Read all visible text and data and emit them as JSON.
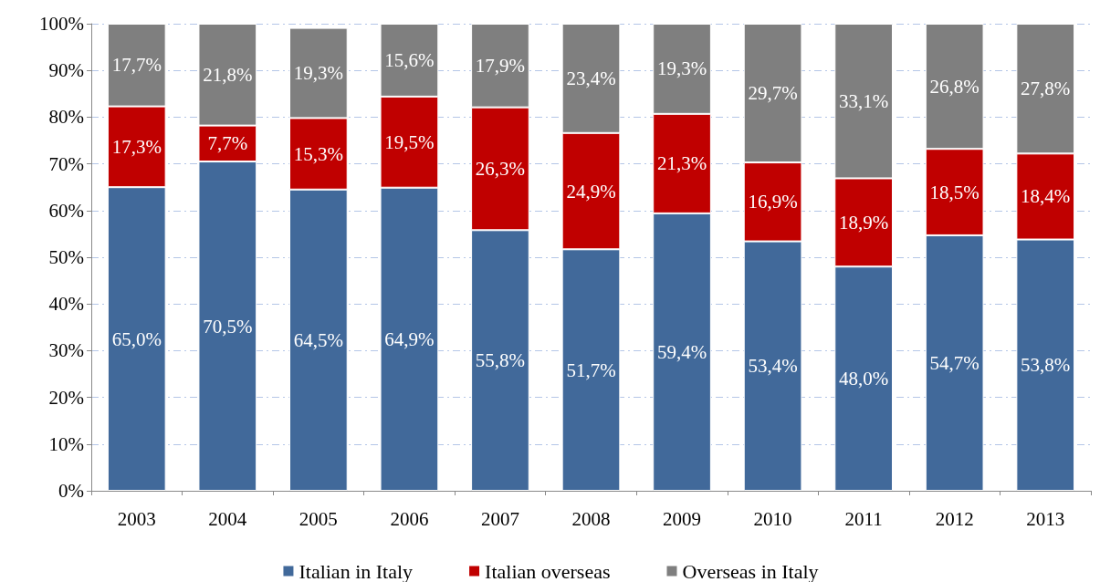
{
  "chart_data": {
    "type": "bar",
    "stacked": true,
    "categories": [
      "2003",
      "2004",
      "2005",
      "2006",
      "2007",
      "2008",
      "2009",
      "2010",
      "2011",
      "2012",
      "2013"
    ],
    "series": [
      {
        "name": "Italian in Italy",
        "color": "#41699a",
        "values": [
          65.0,
          70.5,
          64.5,
          64.9,
          55.8,
          51.7,
          59.4,
          53.4,
          48.0,
          54.7,
          53.8
        ],
        "value_labels": [
          "65,0%",
          "70,5%",
          "64,5%",
          "64,9%",
          "55,8%",
          "51,7%",
          "59,4%",
          "53,4%",
          "48,0%",
          "54,7%",
          "53,8%"
        ]
      },
      {
        "name": "Italian overseas",
        "color": "#c00000",
        "values": [
          17.3,
          7.7,
          15.3,
          19.5,
          26.3,
          24.9,
          21.3,
          16.9,
          18.9,
          18.5,
          18.4
        ],
        "value_labels": [
          "17,3%",
          "7,7%",
          "15,3%",
          "19,5%",
          "26,3%",
          "24,9%",
          "21,3%",
          "16,9%",
          "18,9%",
          "18,5%",
          "18,4%"
        ]
      },
      {
        "name": "Overseas in Italy",
        "color": "#7f7f7f",
        "values": [
          17.7,
          21.8,
          19.3,
          15.6,
          17.9,
          23.4,
          19.3,
          29.7,
          33.1,
          26.8,
          27.8
        ],
        "value_labels": [
          "17,7%",
          "21,8%",
          "19,3%",
          "15,6%",
          "17,9%",
          "23,4%",
          "19,3%",
          "29,7%",
          "33,1%",
          "26,8%",
          "27,8%"
        ]
      }
    ],
    "ylim": [
      0,
      100
    ],
    "yticks": [
      {
        "value": 0,
        "label": "0%"
      },
      {
        "value": 10,
        "label": "10%"
      },
      {
        "value": 20,
        "label": "20%"
      },
      {
        "value": 30,
        "label": "30%"
      },
      {
        "value": 40,
        "label": "40%"
      },
      {
        "value": 50,
        "label": "50%"
      },
      {
        "value": 60,
        "label": "60%"
      },
      {
        "value": 70,
        "label": "70%"
      },
      {
        "value": 80,
        "label": "80%"
      },
      {
        "value": 90,
        "label": "90%"
      },
      {
        "value": 100,
        "label": "100%"
      }
    ],
    "grid": "y",
    "legend": "bottom"
  }
}
